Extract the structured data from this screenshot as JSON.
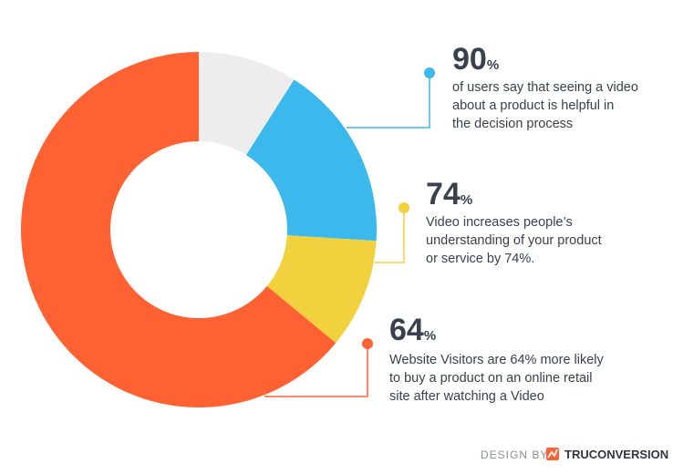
{
  "chart_data": {
    "type": "donut",
    "values": [
      9,
      17,
      10,
      64
    ],
    "colors": [
      "#ededed",
      "#3bb8ec",
      "#f2d13f",
      "#fe6232"
    ],
    "annotations": [
      {
        "number": "90",
        "unit": "%",
        "lines": [
          "of users say that seeing a video",
          "about a product is helpful in",
          "the decision process"
        ]
      },
      {
        "number": "74",
        "unit": "%",
        "lines": [
          "Video increases people’s",
          "understanding of your product",
          "or service by 74%."
        ]
      },
      {
        "number": "64",
        "unit": "%",
        "lines": [
          "Website Visitors are 64% more likely",
          "to buy a product on an online retail",
          "site after watching a Video"
        ]
      }
    ]
  },
  "footer": {
    "prefix": "DESIGN BY",
    "brand": "TRUCONVERSION"
  }
}
